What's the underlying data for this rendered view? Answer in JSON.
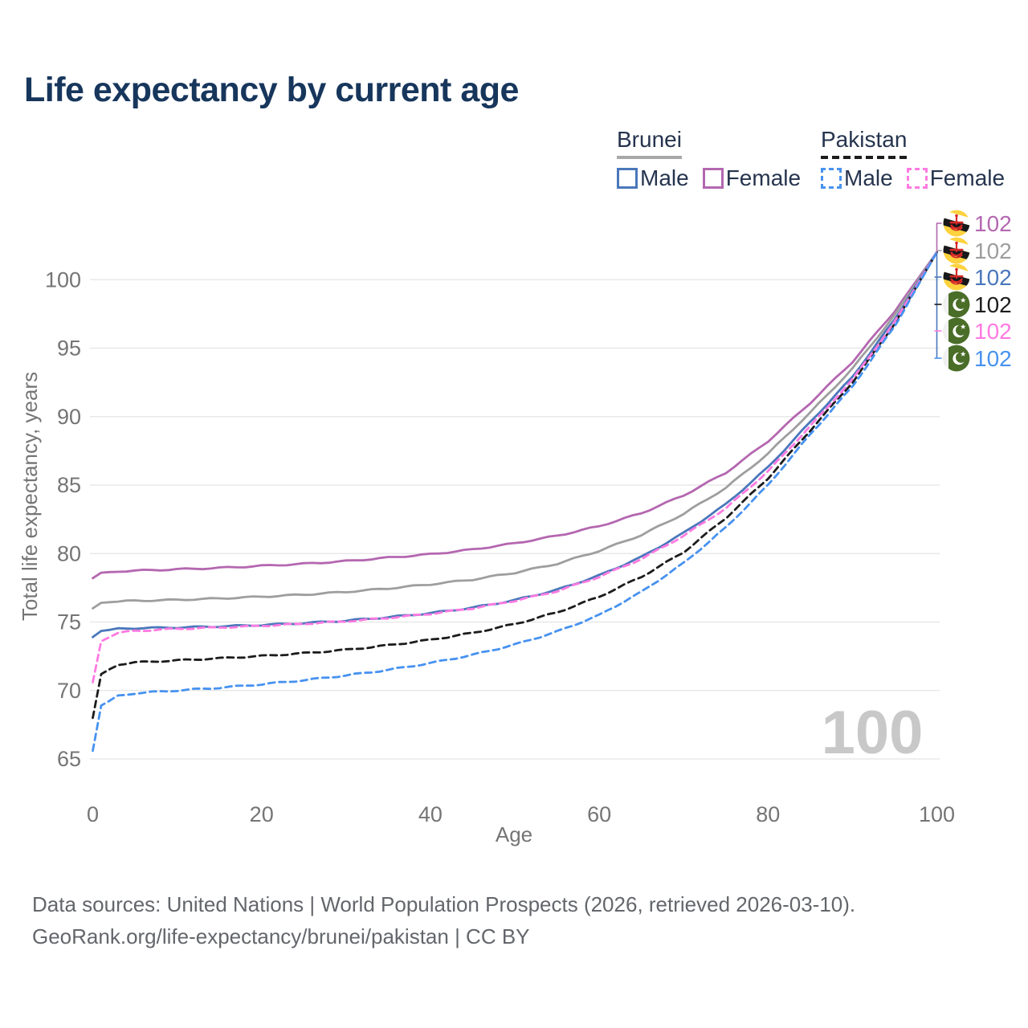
{
  "title": "Life expectancy by current age",
  "legend": {
    "brunei": {
      "label": "Brunei",
      "male": "Male",
      "female": "Female"
    },
    "pakistan": {
      "label": "Pakistan",
      "male": "Male",
      "female": "Female"
    }
  },
  "chart_data": {
    "type": "line",
    "title": "Life expectancy by current age",
    "xlabel": "Age",
    "ylabel": "Total life expectancy, years",
    "xlim": [
      0,
      100
    ],
    "ylim": [
      65,
      103
    ],
    "xticks": [
      0,
      20,
      40,
      60,
      80,
      100
    ],
    "yticks": [
      65,
      70,
      75,
      80,
      85,
      90,
      95,
      100
    ],
    "grid": "horizontal",
    "legend_position": "top-right",
    "age_counter": "100",
    "anchor_ages": [
      0,
      1,
      3,
      5,
      10,
      15,
      20,
      25,
      30,
      35,
      40,
      45,
      50,
      55,
      60,
      65,
      70,
      75,
      80,
      85,
      90,
      95,
      100
    ],
    "series": [
      {
        "name": "Brunei Female",
        "country": "Brunei",
        "sex": "Female",
        "style": "solid",
        "color": "#b467b0",
        "end_label": "102",
        "values": [
          78.2,
          78.6,
          78.7,
          78.75,
          78.85,
          78.95,
          79.1,
          79.25,
          79.45,
          79.7,
          79.95,
          80.3,
          80.75,
          81.3,
          82.0,
          82.95,
          84.25,
          85.9,
          88.2,
          91.0,
          94.0,
          97.7,
          102
        ]
      },
      {
        "name": "Brunei",
        "country": "Brunei",
        "sex": "Both",
        "style": "solid",
        "color": "#9e9e9e",
        "end_label": "102",
        "values": [
          76.0,
          76.4,
          76.5,
          76.55,
          76.62,
          76.72,
          76.85,
          77.0,
          77.2,
          77.45,
          77.75,
          78.1,
          78.6,
          79.25,
          80.2,
          81.35,
          82.9,
          84.8,
          87.3,
          90.3,
          93.5,
          97.4,
          102
        ]
      },
      {
        "name": "Brunei Male",
        "country": "Brunei",
        "sex": "Male",
        "style": "solid",
        "color": "#4a77bb",
        "end_label": "102",
        "values": [
          73.9,
          74.35,
          74.5,
          74.55,
          74.6,
          74.68,
          74.78,
          74.92,
          75.1,
          75.35,
          75.65,
          76.05,
          76.6,
          77.35,
          78.4,
          79.75,
          81.5,
          83.6,
          86.3,
          89.6,
          92.9,
          97.1,
          102
        ]
      },
      {
        "name": "Pakistan",
        "country": "Pakistan",
        "sex": "Both",
        "style": "dashed",
        "color": "#1c1c1c",
        "end_label": "102",
        "values": [
          68.0,
          71.2,
          71.9,
          72.05,
          72.2,
          72.35,
          72.52,
          72.72,
          72.97,
          73.3,
          73.7,
          74.2,
          74.85,
          75.7,
          76.85,
          78.3,
          80.1,
          82.6,
          85.5,
          89.0,
          92.5,
          96.8,
          102
        ]
      },
      {
        "name": "Pakistan Female",
        "country": "Pakistan",
        "sex": "Female",
        "style": "dashed",
        "color": "#ff7ae1",
        "end_label": "102",
        "values": [
          70.6,
          73.6,
          74.2,
          74.35,
          74.5,
          74.6,
          74.72,
          74.87,
          75.05,
          75.3,
          75.6,
          76.0,
          76.55,
          77.25,
          78.3,
          79.6,
          81.3,
          83.3,
          86.0,
          89.3,
          92.7,
          96.9,
          102
        ]
      },
      {
        "name": "Pakistan Male",
        "country": "Pakistan",
        "sex": "Male",
        "style": "dashed",
        "color": "#4792f0",
        "end_label": "102",
        "values": [
          65.6,
          68.9,
          69.6,
          69.8,
          70.0,
          70.2,
          70.45,
          70.75,
          71.1,
          71.5,
          72.0,
          72.6,
          73.35,
          74.3,
          75.5,
          77.2,
          79.3,
          81.9,
          85.0,
          88.7,
          92.2,
          96.6,
          102
        ]
      }
    ]
  },
  "footer": {
    "line1": "Data sources: United Nations | World Population Prospects (2026, retrieved 2026-03-10).",
    "line2": "GeoRank.org/life-expectancy/brunei/pakistan | CC BY"
  }
}
